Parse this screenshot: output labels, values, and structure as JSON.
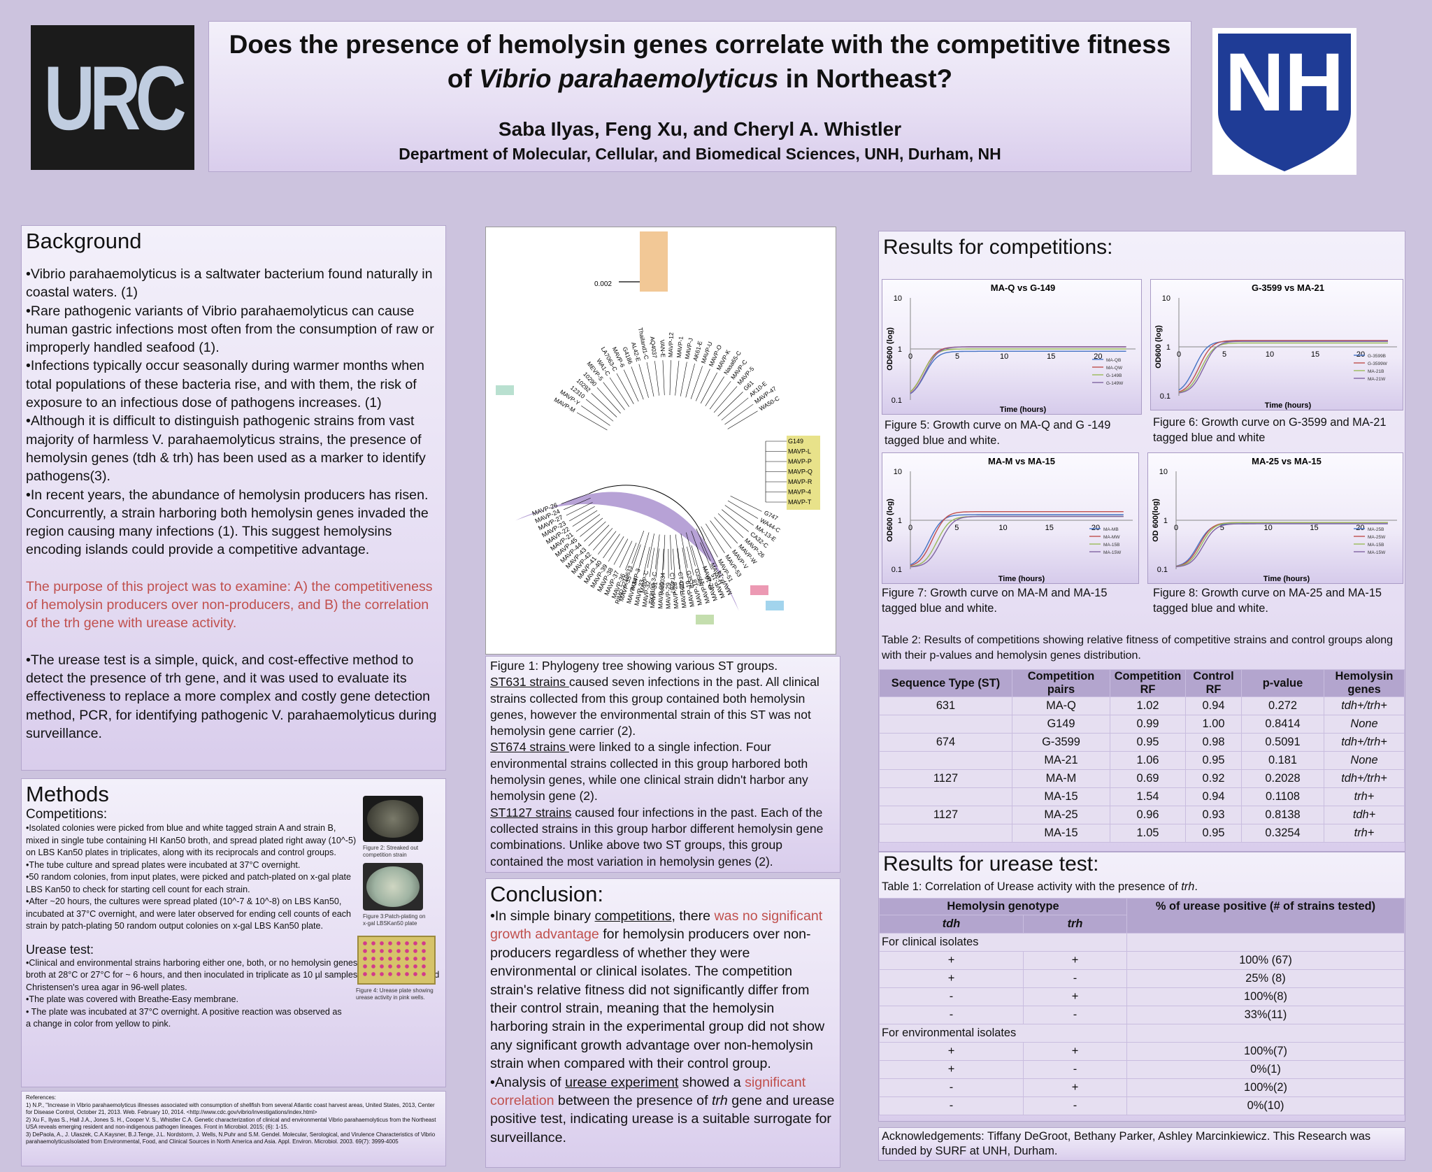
{
  "header": {
    "logo_left": "URC",
    "logo_right": "NH",
    "title_line1": "Does the presence of hemolysin genes correlate with the competitive fitness",
    "title_line2_pre": "of ",
    "title_line2_italic": "Vibrio parahaemolyticus",
    "title_line2_post": " in Northeast?",
    "authors": "Saba Ilyas, Feng Xu, and Cheryl A. Whistler",
    "department": "Department of Molecular, Cellular, and Biomedical Sciences, UNH, Durham, NH"
  },
  "background": {
    "heading": "Background",
    "b1": "•Vibrio parahaemolyticus is a saltwater bacterium found naturally in coastal waters. (1)",
    "b2": "•Rare pathogenic variants of Vibrio parahaemolyticus can cause human gastric infections most often from the consumption of raw or improperly handled seafood (1).",
    "b3": "•Infections typically occur seasonally during warmer months when total populations of these bacteria rise, and with them, the risk of exposure to an infectious dose of pathogens increases. (1)",
    "b4": "•Although it is difficult to distinguish pathogenic strains from vast majority of harmless V. parahaemolyticus strains, the presence of hemolysin genes (tdh & trh) has been used as a marker to identify pathogens(3).",
    "b5": "•In recent years, the abundance of hemolysin producers has risen. Concurrently, a strain harboring both hemolysin genes invaded the region causing many infections (1). This suggest hemolysins encoding islands could provide a competitive advantage.",
    "purpose": "The purpose of this project was to examine: A) the competitiveness of hemolysin producers over non-producers, and B) the correlation of the trh gene with urease activity.",
    "b6": "•The urease test is a simple, quick, and cost-effective method to detect the presence of trh gene, and it was used to evaluate its effectiveness to replace a more complex and costly gene detection method, PCR, for identifying pathogenic V. parahaemolyticus during surveillance."
  },
  "methods": {
    "heading": "Methods",
    "sub1": "Competitions:",
    "m1": "•Isolated colonies were picked from blue and white tagged strain A and strain B, mixed in single tube containing HI Kan50 broth, and spread plated right away (10^-5) on LBS Kan50 plates in triplicates, along with its reciprocals and control groups.",
    "m2": "•The tube culture and spread plates were incubated at 37°C overnight.",
    "m3": "•50 random colonies, from input plates, were picked and patch-plated on x-gal plate LBS Kan50 to check for starting cell count for each strain.",
    "m4": "•After ~20 hours, the cultures were spread plated (10^-7 & 10^-8) on LBS Kan50, incubated at 37°C overnight, and were later observed for ending cell counts of each strain by patch-plating 50 random output colonies on x-gal LBS Kan50 plate.",
    "sub2": "Urease test:",
    "u1": "•Clinical and environmental strains harboring either one, both, or no hemolysin genes were grown in HI broth at 28°C or 27°C for ~ 6 hours, and then inoculated in triplicate as 10 µl samples onto 200 µl modified Christensen's urea agar in 96-well plates.",
    "u2": "•The plate was covered with Breathe-Easy membrane.",
    "u3": "• The plate was incubated at 37°C overnight. A positive reaction was observed as a change in color from yellow to pink.",
    "fig2": "Figure 2: Streaked out competition strain",
    "fig3": "Figure 3:Patch-plating on x-gal LBSKan50 plate",
    "fig4": "Figure 4: Urease plate showing urease activity in pink wells."
  },
  "references": {
    "r0": "References:",
    "r1": "1) N.P., \"Increase in Vibrio parahaemolyticus illnesses associated with consumption of shellfish from several Atlantic coast harvest areas, United States, 2013, Center for Disease Control, October 21, 2013. Web. February 10, 2014. <http://www.cdc.gov/vibrio/investigations/index.html>",
    "r2": "2) Xu F., Ilyas S., Hall J.A., Jones S. H., Cooper V. S., Whistler C.A. Genetic characterization of clinical and environmental Vibrio parahaemolyticus from the Northeast USA reveals emerging resident and non-indigenous pathogen lineages. Front in Microbiol. 2015; (6): 1-15.",
    "r3": "3) DePaola, A., J. Ulaszek, C.A.Kaysner, B.J.Tenge, J.L. Nordstorm, J. Wells, N.Puhr and S.M. Gendel. Molecular, Serological, and Virulence Characteristics of Vibrio parahaemolyticusIsolated from Environmental, Food, and Clinical Sources in North America and Asia. Appl. Environ. Microbiol. 2003. 69(7): 3999-4005"
  },
  "tree": {
    "scale": "0.002",
    "labels_purple": [
      "MAVP-26",
      "MAVP-24",
      "MAVP-27",
      "MAVP-23",
      "MAVP-22",
      "MAVP-21",
      "MAVP-45",
      "MAVP-44",
      "MAVP-43",
      "MAVP-42",
      "MAVP-41",
      "MAVP-40",
      "MAVP-39",
      "MAVP-38",
      "MAVP-37",
      "MAVP-36",
      "MAVP-35",
      "MAVP-34",
      "MAVP-33",
      "MAVP-32",
      "MAVP-31",
      "MAVP-30",
      "MAVP-29",
      "MAVP-28",
      "MAVP-20",
      "MAVP-19",
      "MAVP-18",
      "MAVP-17",
      "MAVP-16",
      "MAVP-15",
      "MAVP-14"
    ],
    "labels_yellow": [
      "G149",
      "MAVP-L",
      "MAVP-P",
      "MAVP-Q",
      "MAVP-R",
      "MAVP-4",
      "MAVP-T"
    ],
    "labels_misc": [
      "RIMD 2210633",
      "MAVP-3",
      "MAVP-C",
      "TX2103-3-C",
      "AN5034",
      "CT4287",
      "CT4291",
      "G3578",
      "G3589",
      "MAVP-21",
      "MAVP-H",
      "MAVP-51",
      "MAVP-53",
      "MAVP-V",
      "MAVP-W",
      "MAVP-26",
      "CA32-C",
      "MA-13-E",
      "WA44-C",
      "G747",
      "G755",
      "MAVP-28",
      "MAVP-58",
      "FL661-C",
      "MD631-C",
      "MD631-E",
      "FL536-E",
      "NY18-E",
      "BB22",
      "Peru98-C",
      "India189-C",
      "AK4 NH-E",
      "WA50-C",
      "MAVP-47",
      "AK10-E",
      "G61",
      "MAVP-5",
      "MAVP-C",
      "Nasa65-C",
      "MAVP-K",
      "MAVP-O",
      "MAVP-U",
      "AK61-E",
      "MAVP-J",
      "MAVP-1",
      "MAVP-12",
      "VAN-E",
      "AQ4037",
      "Thailand1-C",
      "AL42-E",
      "G4186",
      "MAVP-6",
      "LA7063-C",
      "WA1-C",
      "MEVP-5",
      "10290",
      "10292",
      "12310",
      "MAVP-Y",
      "MAVP-M"
    ]
  },
  "fig1_caption": {
    "c0": "Figure 1: Phylogeny tree showing various ST groups.",
    "c1a": "ST631 strains ",
    "c1b": "caused seven infections in the past. All clinical strains collected from this group contained both hemolysin genes, however the environmental strain of this ST was not hemolysin gene carrier (2).",
    "c2a": "ST674 strains ",
    "c2b": "were linked to a single infection. Four environmental strains collected in this group harbored both hemolysin genes, while one clinical strain didn't harbor any hemolysin gene (2).",
    "c3a": "ST1127 strains",
    "c3b": " caused four infections in the past. Each of the collected strains in this group harbor different hemolysin gene combinations. Unlike above two ST groups, this group contained the most variation in hemolysin genes (2)."
  },
  "conclusion": {
    "heading": "Conclusion:",
    "p1a": "•In simple binary ",
    "p1b": "competitions",
    "p1c": ", there ",
    "p1d": "was no significant growth advantage",
    "p1e": " for hemolysin producers over non-producers regardless of whether they were environmental or clinical isolates. The competition strain's relative fitness did not significantly differ from their control strain, meaning that the hemolysin harboring strain in the experimental group did not show any significant growth advantage over non-hemolysin strain when compared with their control group.",
    "p2a": "•Analysis of ",
    "p2b": "urease experiment",
    "p2c": " showed a ",
    "p2d": "significant correlation",
    "p2e": " between the presence of ",
    "p2f": "trh",
    "p2g": " gene and urease positive test, indicating urease is a suitable surrogate for surveillance."
  },
  "results": {
    "heading": "Results for competitions:",
    "fig5": "Figure 5: Growth curve on MA-Q and G -149 tagged blue and white.",
    "fig6": "Figure 6: Growth curve on G-3599 and MA-21 tagged blue and white",
    "fig7": "Figure 7: Growth curve on MA-M and MA-15 tagged blue and white.",
    "fig8": "Figure 8: Growth curve on MA-25 and MA-15 tagged blue and white.",
    "table2_caption": "Table 2:  Results of competitions showing relative fitness of competitive strains and control groups along with their p-values and hemolysin genes distribution.",
    "table2_headers": [
      "Sequence Type (ST)",
      "Competition pairs",
      "Competition RF",
      "Control RF",
      "p-value",
      "Hemolysin genes"
    ],
    "table2_rows": [
      [
        "631",
        "MA-Q",
        "1.02",
        "0.94",
        "0.272",
        "tdh+/trh+"
      ],
      [
        "",
        "G149",
        "0.99",
        "1.00",
        "0.8414",
        "None"
      ],
      [
        "674",
        "G-3599",
        "0.95",
        "0.98",
        "0.5091",
        "tdh+/trh+"
      ],
      [
        "",
        "MA-21",
        "1.06",
        "0.95",
        "0.181",
        "None"
      ],
      [
        "1127",
        "MA-M",
        "0.69",
        "0.92",
        "0.2028",
        "tdh+/trh+"
      ],
      [
        "",
        "MA-15",
        "1.54",
        "0.94",
        "0.1108",
        "trh+"
      ],
      [
        "1127",
        "MA-25",
        "0.96",
        "0.93",
        "0.8138",
        "tdh+"
      ],
      [
        "",
        "MA-15",
        "1.05",
        "0.95",
        "0.3254",
        "trh+"
      ]
    ]
  },
  "urease": {
    "heading": "Results  for urease test:",
    "caption_pre": "Table 1: Correlation of Urease activity with the presence of ",
    "caption_it": "trh",
    "caption_post": ".",
    "h_genotype": "Hemolysin genotype",
    "h_pct": "% of urease positive (# of strains tested)",
    "h_tdh": "tdh",
    "h_trh": "trh",
    "clinical": "For clinical isolates",
    "environmental": "For environmental isolates",
    "clinical_rows": [
      [
        "+",
        "+",
        "100% (67)"
      ],
      [
        "+",
        "-",
        "25% (8)"
      ],
      [
        "-",
        "+",
        "100%(8)"
      ],
      [
        "-",
        "-",
        "33%(11)"
      ]
    ],
    "env_rows": [
      [
        "+",
        "+",
        "100%(7)"
      ],
      [
        "+",
        "-",
        "0%(1)"
      ],
      [
        "-",
        "+",
        "100%(2)"
      ],
      [
        "-",
        "-",
        "0%(10)"
      ]
    ]
  },
  "ack": "Acknowledgements:  Tiffany DeGroot, Bethany  Parker, Ashley Marcinkiewicz. This  Research  was funded by SURF at UNH, Durham.",
  "chart_data": [
    {
      "type": "line",
      "title": "MA-Q vs G-149",
      "xlabel": "Time (hours)",
      "ylabel": "OD600 (log)",
      "ylim": [
        0.1,
        10
      ],
      "yscale": "log",
      "x_ticks": [
        0,
        5,
        10,
        15,
        20
      ],
      "y_ticks": [
        "10",
        "1",
        "0.1"
      ],
      "series": [
        {
          "name": "MA-QB",
          "color": "#4472c4"
        },
        {
          "name": "MA-QW",
          "color": "#c0504d"
        },
        {
          "name": "G-149B",
          "color": "#9bbb59"
        },
        {
          "name": "G-149W",
          "color": "#8064a2"
        }
      ]
    },
    {
      "type": "line",
      "title": "G-3599 vs MA-21",
      "xlabel": "Time (hours)",
      "ylabel": "OD600 (log)",
      "ylim": [
        0.1,
        10
      ],
      "yscale": "log",
      "x_ticks": [
        0,
        5,
        10,
        15,
        20
      ],
      "y_ticks": [
        "10",
        "1",
        "0.1"
      ],
      "series": [
        {
          "name": "G-3599B",
          "color": "#4472c4"
        },
        {
          "name": "G-3599W",
          "color": "#c0504d"
        },
        {
          "name": "MA-21B",
          "color": "#9bbb59"
        },
        {
          "name": "MA-21W",
          "color": "#8064a2"
        }
      ]
    },
    {
      "type": "line",
      "title": "MA-M vs MA-15",
      "xlabel": "Time (hours)",
      "ylabel": "OD600 (log)",
      "ylim": [
        0.1,
        10
      ],
      "yscale": "log",
      "x_ticks": [
        0,
        5,
        10,
        15,
        20
      ],
      "y_ticks": [
        "10",
        "1",
        "0.1"
      ],
      "series": [
        {
          "name": "MA-MB",
          "color": "#4472c4"
        },
        {
          "name": "MA-MW",
          "color": "#c0504d"
        },
        {
          "name": "MA-15B",
          "color": "#9bbb59"
        },
        {
          "name": "MA-15W",
          "color": "#8064a2"
        }
      ]
    },
    {
      "type": "line",
      "title": "MA-25 vs MA-15",
      "xlabel": "Time (hours)",
      "ylabel": "OD 600(log)",
      "ylim": [
        0.1,
        10
      ],
      "yscale": "log",
      "x_ticks": [
        0,
        5,
        10,
        15,
        20
      ],
      "y_ticks": [
        "10",
        "1",
        "0.1"
      ],
      "series": [
        {
          "name": "MA-25B",
          "color": "#4472c4"
        },
        {
          "name": "MA-25W",
          "color": "#c0504d"
        },
        {
          "name": "MA-15B",
          "color": "#9bbb59"
        },
        {
          "name": "MA-15W",
          "color": "#8064a2"
        }
      ]
    }
  ]
}
